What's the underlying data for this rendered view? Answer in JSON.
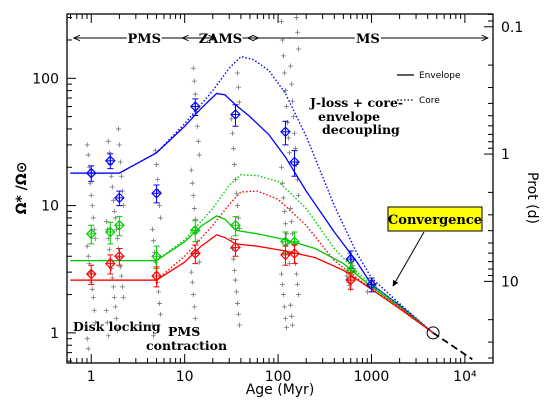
{
  "chart_data": {
    "type": "line",
    "x_scale": "log",
    "y_scale": "log",
    "xlabel": "Age (Myr)",
    "ylabel": "Ω* /Ω⊙",
    "y2label": "Prot (d)",
    "xlim": [
      0.55,
      20000
    ],
    "ylim": [
      0.58,
      320
    ],
    "x_ticks": [
      {
        "v": 1,
        "label": "1"
      },
      {
        "v": 10,
        "label": "10"
      },
      {
        "v": 100,
        "label": "100"
      },
      {
        "v": 1000,
        "label": "1000"
      },
      {
        "v": 10000,
        "label": "10⁴"
      }
    ],
    "y_ticks": [
      {
        "v": 1,
        "label": "1"
      },
      {
        "v": 10,
        "label": "10"
      },
      {
        "v": 100,
        "label": "100"
      }
    ],
    "y2_ticks": [
      {
        "v": 0.1,
        "label": "0.1"
      },
      {
        "v": 1,
        "label": "1"
      },
      {
        "v": 10,
        "label": "10"
      }
    ],
    "phases": [
      {
        "label": "PMS",
        "from": 0.62,
        "to": 22
      },
      {
        "label": "ZAMS",
        "from": 9,
        "to": 65
      },
      {
        "label": "MS",
        "from": 45,
        "to": 20000
      }
    ],
    "legend": [
      {
        "label": "Envelope",
        "style": "solid"
      },
      {
        "label": "Core",
        "style": "dotted"
      }
    ],
    "annotations": {
      "jloss": "J-loss + core-",
      "envelope": "envelope",
      "decoupling": "decoupling",
      "convergence": "Convergence",
      "disk": "Disk locking",
      "pms1": "PMS",
      "pms2": "contraction"
    },
    "series": [
      {
        "color": "#0000ff",
        "style": "solid",
        "points": [
          [
            0.6,
            18
          ],
          [
            2,
            18
          ],
          [
            5,
            26
          ],
          [
            10,
            42
          ],
          [
            15,
            58
          ],
          [
            22,
            76
          ],
          [
            27,
            74
          ],
          [
            35,
            62
          ],
          [
            50,
            50
          ],
          [
            80,
            36
          ],
          [
            120,
            24
          ],
          [
            200,
            13
          ],
          [
            400,
            6.2
          ],
          [
            700,
            3.6
          ],
          [
            1000,
            2.4
          ],
          [
            2000,
            1.65
          ],
          [
            4570,
            1.0
          ]
        ]
      },
      {
        "color": "#0000ff",
        "style": "dotted",
        "points": [
          [
            0.6,
            18
          ],
          [
            2,
            18
          ],
          [
            5,
            26
          ],
          [
            10,
            44
          ],
          [
            20,
            80
          ],
          [
            30,
            120
          ],
          [
            40,
            148
          ],
          [
            55,
            140
          ],
          [
            80,
            115
          ],
          [
            120,
            76
          ],
          [
            200,
            35
          ],
          [
            400,
            10
          ],
          [
            700,
            4.2
          ],
          [
            1000,
            2.7
          ],
          [
            2000,
            1.7
          ],
          [
            4570,
            1.0
          ]
        ]
      },
      {
        "color": "#00cc00",
        "style": "solid",
        "points": [
          [
            0.6,
            3.7
          ],
          [
            5,
            3.7
          ],
          [
            10,
            5.2
          ],
          [
            15,
            6.9
          ],
          [
            22,
            8.3
          ],
          [
            27,
            7.8
          ],
          [
            35,
            6.4
          ],
          [
            60,
            6.0
          ],
          [
            120,
            5.4
          ],
          [
            250,
            4.6
          ],
          [
            500,
            3.5
          ],
          [
            1000,
            2.3
          ],
          [
            2000,
            1.6
          ],
          [
            4570,
            1.0
          ]
        ]
      },
      {
        "color": "#00cc00",
        "style": "dotted",
        "points": [
          [
            0.6,
            3.7
          ],
          [
            5,
            3.7
          ],
          [
            10,
            5.4
          ],
          [
            20,
            9.5
          ],
          [
            30,
            14.5
          ],
          [
            40,
            17.5
          ],
          [
            60,
            17.2
          ],
          [
            100,
            15.5
          ],
          [
            200,
            9.5
          ],
          [
            400,
            4.6
          ],
          [
            700,
            3.0
          ],
          [
            1000,
            2.4
          ],
          [
            2000,
            1.65
          ],
          [
            4570,
            1.0
          ]
        ]
      },
      {
        "color": "#ff0000",
        "style": "solid",
        "points": [
          [
            0.6,
            2.6
          ],
          [
            5,
            2.6
          ],
          [
            10,
            3.6
          ],
          [
            15,
            4.8
          ],
          [
            22,
            5.9
          ],
          [
            27,
            5.6
          ],
          [
            35,
            5.0
          ],
          [
            60,
            4.8
          ],
          [
            120,
            4.4
          ],
          [
            250,
            3.9
          ],
          [
            500,
            3.1
          ],
          [
            1000,
            2.2
          ],
          [
            2000,
            1.55
          ],
          [
            4570,
            1.0
          ]
        ]
      },
      {
        "color": "#ff0000",
        "style": "dotted",
        "points": [
          [
            0.6,
            2.6
          ],
          [
            5,
            2.6
          ],
          [
            10,
            4.0
          ],
          [
            20,
            7.0
          ],
          [
            30,
            10.2
          ],
          [
            40,
            12.8
          ],
          [
            60,
            13.0
          ],
          [
            100,
            11.2
          ],
          [
            200,
            7.0
          ],
          [
            400,
            3.7
          ],
          [
            700,
            2.7
          ],
          [
            1000,
            2.2
          ],
          [
            2000,
            1.6
          ],
          [
            4570,
            1.0
          ]
        ]
      },
      {
        "color": "#000000",
        "style": "dashed",
        "points": [
          [
            4570,
            1.0
          ],
          [
            7000,
            0.81
          ],
          [
            12000,
            0.62
          ]
        ]
      }
    ],
    "error_points": [
      {
        "color": "#0000ff",
        "points": [
          [
            1,
            18,
            2.5
          ],
          [
            1.6,
            22.5,
            3
          ],
          [
            2,
            11.5,
            1.5
          ],
          [
            5,
            12.5,
            2
          ],
          [
            13,
            60,
            9
          ],
          [
            35,
            52,
            10
          ],
          [
            120,
            38,
            8
          ],
          [
            150,
            22,
            5
          ],
          [
            600,
            3.8,
            0.6
          ],
          [
            1000,
            2.4,
            0.3
          ]
        ]
      },
      {
        "color": "#00cc00",
        "points": [
          [
            1,
            6.0,
            1
          ],
          [
            1.6,
            6.2,
            1.2
          ],
          [
            2,
            7.0,
            1.2
          ],
          [
            5,
            4.0,
            0.8
          ],
          [
            13,
            6.4,
            1.2
          ],
          [
            35,
            7.0,
            1.2
          ],
          [
            120,
            5.2,
            1
          ],
          [
            150,
            5.2,
            1
          ],
          [
            600,
            3.1,
            0.5
          ]
        ]
      },
      {
        "color": "#ff0000",
        "points": [
          [
            1,
            2.9,
            0.5
          ],
          [
            1.6,
            3.5,
            0.6
          ],
          [
            2,
            4.0,
            0.6
          ],
          [
            5,
            2.8,
            0.5
          ],
          [
            13,
            4.2,
            0.7
          ],
          [
            35,
            4.7,
            0.7
          ],
          [
            120,
            4.1,
            0.7
          ],
          [
            150,
            4.2,
            0.7
          ],
          [
            600,
            2.6,
            0.4
          ]
        ]
      }
    ],
    "sun_point": [
      4570,
      1.0
    ],
    "observations": [
      [
        1,
        30
      ],
      [
        1,
        25
      ],
      [
        1,
        20
      ],
      [
        1,
        15
      ],
      [
        1,
        12
      ],
      [
        1,
        10
      ],
      [
        1,
        8
      ],
      [
        1,
        6.5
      ],
      [
        1,
        5.5
      ],
      [
        1,
        4.8
      ],
      [
        1,
        4
      ],
      [
        1,
        3.5
      ],
      [
        1,
        3
      ],
      [
        1,
        2.5
      ],
      [
        1,
        2.2
      ],
      [
        1,
        1.9
      ],
      [
        1,
        1.5
      ],
      [
        1,
        1.2
      ],
      [
        1,
        0.9
      ],
      [
        1,
        0.75
      ],
      [
        1.6,
        32
      ],
      [
        1.6,
        26
      ],
      [
        1.6,
        21
      ],
      [
        1.6,
        17
      ],
      [
        1.6,
        14
      ],
      [
        1.6,
        11
      ],
      [
        1.6,
        9
      ],
      [
        1.6,
        7.5
      ],
      [
        1.6,
        6.5
      ],
      [
        1.6,
        5.5
      ],
      [
        1.6,
        4.5
      ],
      [
        1.6,
        3.8
      ],
      [
        1.6,
        3.2
      ],
      [
        1.6,
        2.7
      ],
      [
        1.6,
        2.3
      ],
      [
        1.6,
        1.9
      ],
      [
        1.6,
        1.5
      ],
      [
        1.6,
        1.2
      ],
      [
        1.6,
        0.95
      ],
      [
        2,
        40
      ],
      [
        2,
        30
      ],
      [
        2,
        22
      ],
      [
        2,
        17
      ],
      [
        2,
        13
      ],
      [
        2,
        10
      ],
      [
        2,
        8
      ],
      [
        2,
        6.5
      ],
      [
        2,
        5.5
      ],
      [
        2,
        4.6
      ],
      [
        2,
        3.9
      ],
      [
        2,
        3.3
      ],
      [
        2,
        2.8
      ],
      [
        2,
        2.3
      ],
      [
        2,
        1.9
      ],
      [
        2,
        1.6
      ],
      [
        2,
        1.3
      ],
      [
        2,
        1.05
      ],
      [
        5,
        27
      ],
      [
        5,
        21
      ],
      [
        5,
        16
      ],
      [
        5,
        13
      ],
      [
        5,
        10
      ],
      [
        5,
        8
      ],
      [
        5,
        6.5
      ],
      [
        5,
        5.3
      ],
      [
        5,
        4.3
      ],
      [
        5,
        3.6
      ],
      [
        5,
        3
      ],
      [
        5,
        2.5
      ],
      [
        5,
        2.1
      ],
      [
        5,
        1.7
      ],
      [
        5,
        1.4
      ],
      [
        5,
        1.15
      ],
      [
        5,
        0.95
      ],
      [
        13,
        120
      ],
      [
        13,
        95
      ],
      [
        13,
        75
      ],
      [
        13,
        55
      ],
      [
        13,
        42
      ],
      [
        13,
        32
      ],
      [
        13,
        25
      ],
      [
        13,
        19
      ],
      [
        13,
        15
      ],
      [
        13,
        12
      ],
      [
        13,
        9.5
      ],
      [
        13,
        7.8
      ],
      [
        13,
        6.3
      ],
      [
        13,
        5.2
      ],
      [
        13,
        4.3
      ],
      [
        13,
        3.6
      ],
      [
        13,
        3
      ],
      [
        13,
        2.5
      ],
      [
        13,
        2
      ],
      [
        13,
        1.6
      ],
      [
        13,
        1.3
      ],
      [
        13,
        1.05
      ],
      [
        35,
        110
      ],
      [
        35,
        85
      ],
      [
        35,
        65
      ],
      [
        35,
        48
      ],
      [
        35,
        37
      ],
      [
        35,
        28
      ],
      [
        35,
        21
      ],
      [
        35,
        16
      ],
      [
        35,
        12.5
      ],
      [
        35,
        10
      ],
      [
        35,
        8
      ],
      [
        35,
        6.6
      ],
      [
        35,
        5.5
      ],
      [
        35,
        4.6
      ],
      [
        35,
        3.8
      ],
      [
        35,
        3.1
      ],
      [
        35,
        2.6
      ],
      [
        35,
        2.1
      ],
      [
        35,
        1.7
      ],
      [
        35,
        1.4
      ],
      [
        35,
        1.15
      ],
      [
        120,
        280
      ],
      [
        120,
        200
      ],
      [
        120,
        150
      ],
      [
        120,
        110
      ],
      [
        120,
        80
      ],
      [
        120,
        60
      ],
      [
        120,
        45
      ],
      [
        120,
        34
      ],
      [
        120,
        26
      ],
      [
        120,
        20
      ],
      [
        120,
        15
      ],
      [
        120,
        11.5
      ],
      [
        120,
        9
      ],
      [
        120,
        7.2
      ],
      [
        120,
        6
      ],
      [
        120,
        5
      ],
      [
        120,
        4.2
      ],
      [
        120,
        3.5
      ],
      [
        120,
        2.9
      ],
      [
        120,
        2.4
      ],
      [
        120,
        2
      ],
      [
        120,
        1.6
      ],
      [
        120,
        1.3
      ],
      [
        120,
        1.1
      ],
      [
        150,
        300
      ],
      [
        150,
        230
      ],
      [
        150,
        170
      ],
      [
        150,
        125
      ],
      [
        150,
        90
      ],
      [
        150,
        66
      ],
      [
        150,
        50
      ],
      [
        150,
        37
      ],
      [
        150,
        28
      ],
      [
        150,
        21
      ],
      [
        150,
        16
      ],
      [
        150,
        12
      ],
      [
        150,
        9.5
      ],
      [
        150,
        7.5
      ],
      [
        150,
        6
      ],
      [
        150,
        5
      ],
      [
        150,
        4.2
      ],
      [
        150,
        3.5
      ],
      [
        150,
        2.9
      ],
      [
        150,
        2.4
      ],
      [
        150,
        2
      ],
      [
        150,
        1.65
      ],
      [
        150,
        1.35
      ],
      [
        150,
        1.15
      ],
      [
        600,
        4.2
      ],
      [
        600,
        3.9
      ],
      [
        600,
        3.6
      ],
      [
        600,
        3.4
      ],
      [
        600,
        3.2
      ],
      [
        600,
        3
      ],
      [
        600,
        2.8
      ],
      [
        600,
        2.65
      ],
      [
        600,
        2.5
      ],
      [
        600,
        2.35
      ],
      [
        600,
        2.2
      ],
      [
        1000,
        2.6
      ],
      [
        1000,
        2.45
      ],
      [
        1000,
        2.3
      ],
      [
        1000,
        2.2
      ],
      [
        1000,
        2.1
      ]
    ]
  }
}
